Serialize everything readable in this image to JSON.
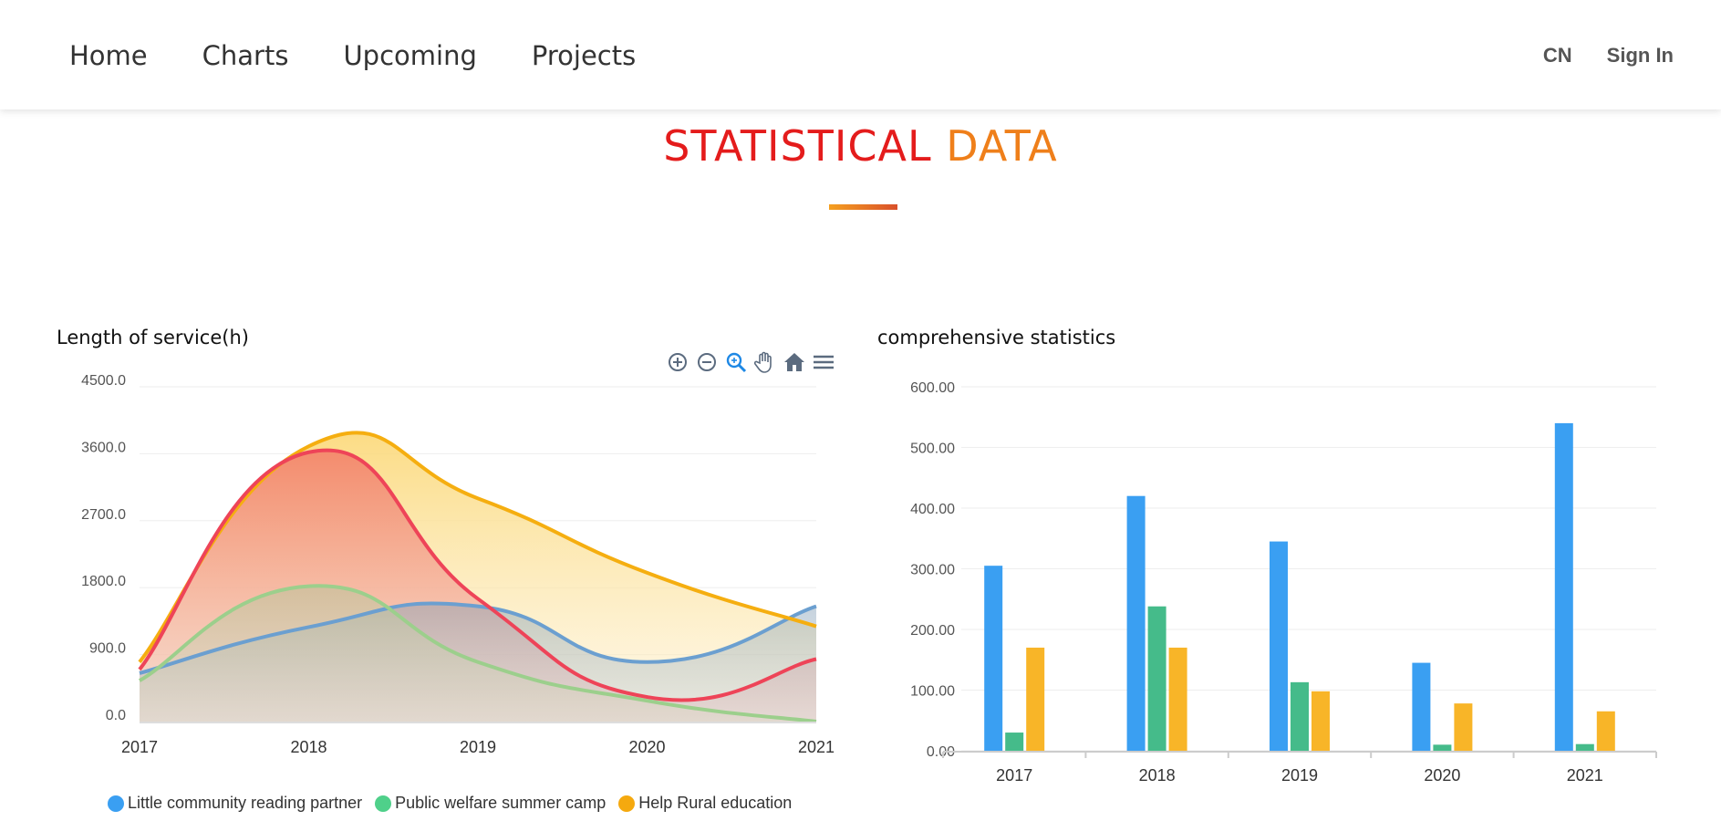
{
  "nav": {
    "items": [
      {
        "label": "Home"
      },
      {
        "label": "Charts"
      },
      {
        "label": "Upcoming"
      },
      {
        "label": "Projects"
      }
    ],
    "lang": "CN",
    "signin": "Sign In"
  },
  "section": {
    "title_part1": "STATISTICAL",
    "title_part2": "DATA"
  },
  "colors": {
    "blue": "#3a9ff2",
    "green": "#4fd08a",
    "orange": "#f5a90f",
    "red": "#f04a5a"
  },
  "toolbox": [
    "zoom-in-icon",
    "zoom-out-icon",
    "zoom-select-icon",
    "pan-hand-icon",
    "home-icon",
    "menu-icon"
  ],
  "chart_data": [
    {
      "type": "area",
      "title": "Length of service(h)",
      "x": [
        "2017",
        "2018",
        "2019",
        "2020",
        "2021"
      ],
      "ylim": [
        0,
        4500
      ],
      "yticks": [
        "0.0",
        "900.0",
        "1800.0",
        "2700.0",
        "3600.0",
        "4500.0"
      ],
      "series": [
        {
          "name": "Little community reading partner",
          "color": "#3a9ff2",
          "values": [
            650,
            1270,
            1550,
            800,
            1550
          ]
        },
        {
          "name": "Public welfare summer camp",
          "color": "#4fd08a",
          "values": [
            550,
            1820,
            800,
            280,
            0
          ]
        },
        {
          "name": "Help Rural education",
          "color": "#f5a90f",
          "values": [
            800,
            3700,
            3000,
            2000,
            1280
          ]
        },
        {
          "name": "",
          "color": "#f04a5a",
          "values": [
            700,
            3620,
            1650,
            330,
            840
          ]
        }
      ],
      "legend": [
        "Little community reading partner",
        "Public welfare summer camp",
        "Help Rural education"
      ],
      "legend_position": "bottom",
      "grid": true
    },
    {
      "type": "bar",
      "title": "comprehensive statistics",
      "categories": [
        "2017",
        "2018",
        "2019",
        "2020",
        "2021"
      ],
      "ylim": [
        0,
        600
      ],
      "yticks": [
        "0.00",
        "100.00",
        "200.00",
        "300.00",
        "400.00",
        "500.00",
        "600.00"
      ],
      "series": [
        {
          "color": "#3a9ff2",
          "values": [
            305,
            420,
            345,
            145,
            540
          ]
        },
        {
          "color": "#45bb8a",
          "values": [
            30,
            238,
            113,
            10,
            11
          ]
        },
        {
          "color": "#f8b528",
          "values": [
            170,
            170,
            98,
            78,
            65
          ]
        }
      ],
      "grid": true
    }
  ]
}
